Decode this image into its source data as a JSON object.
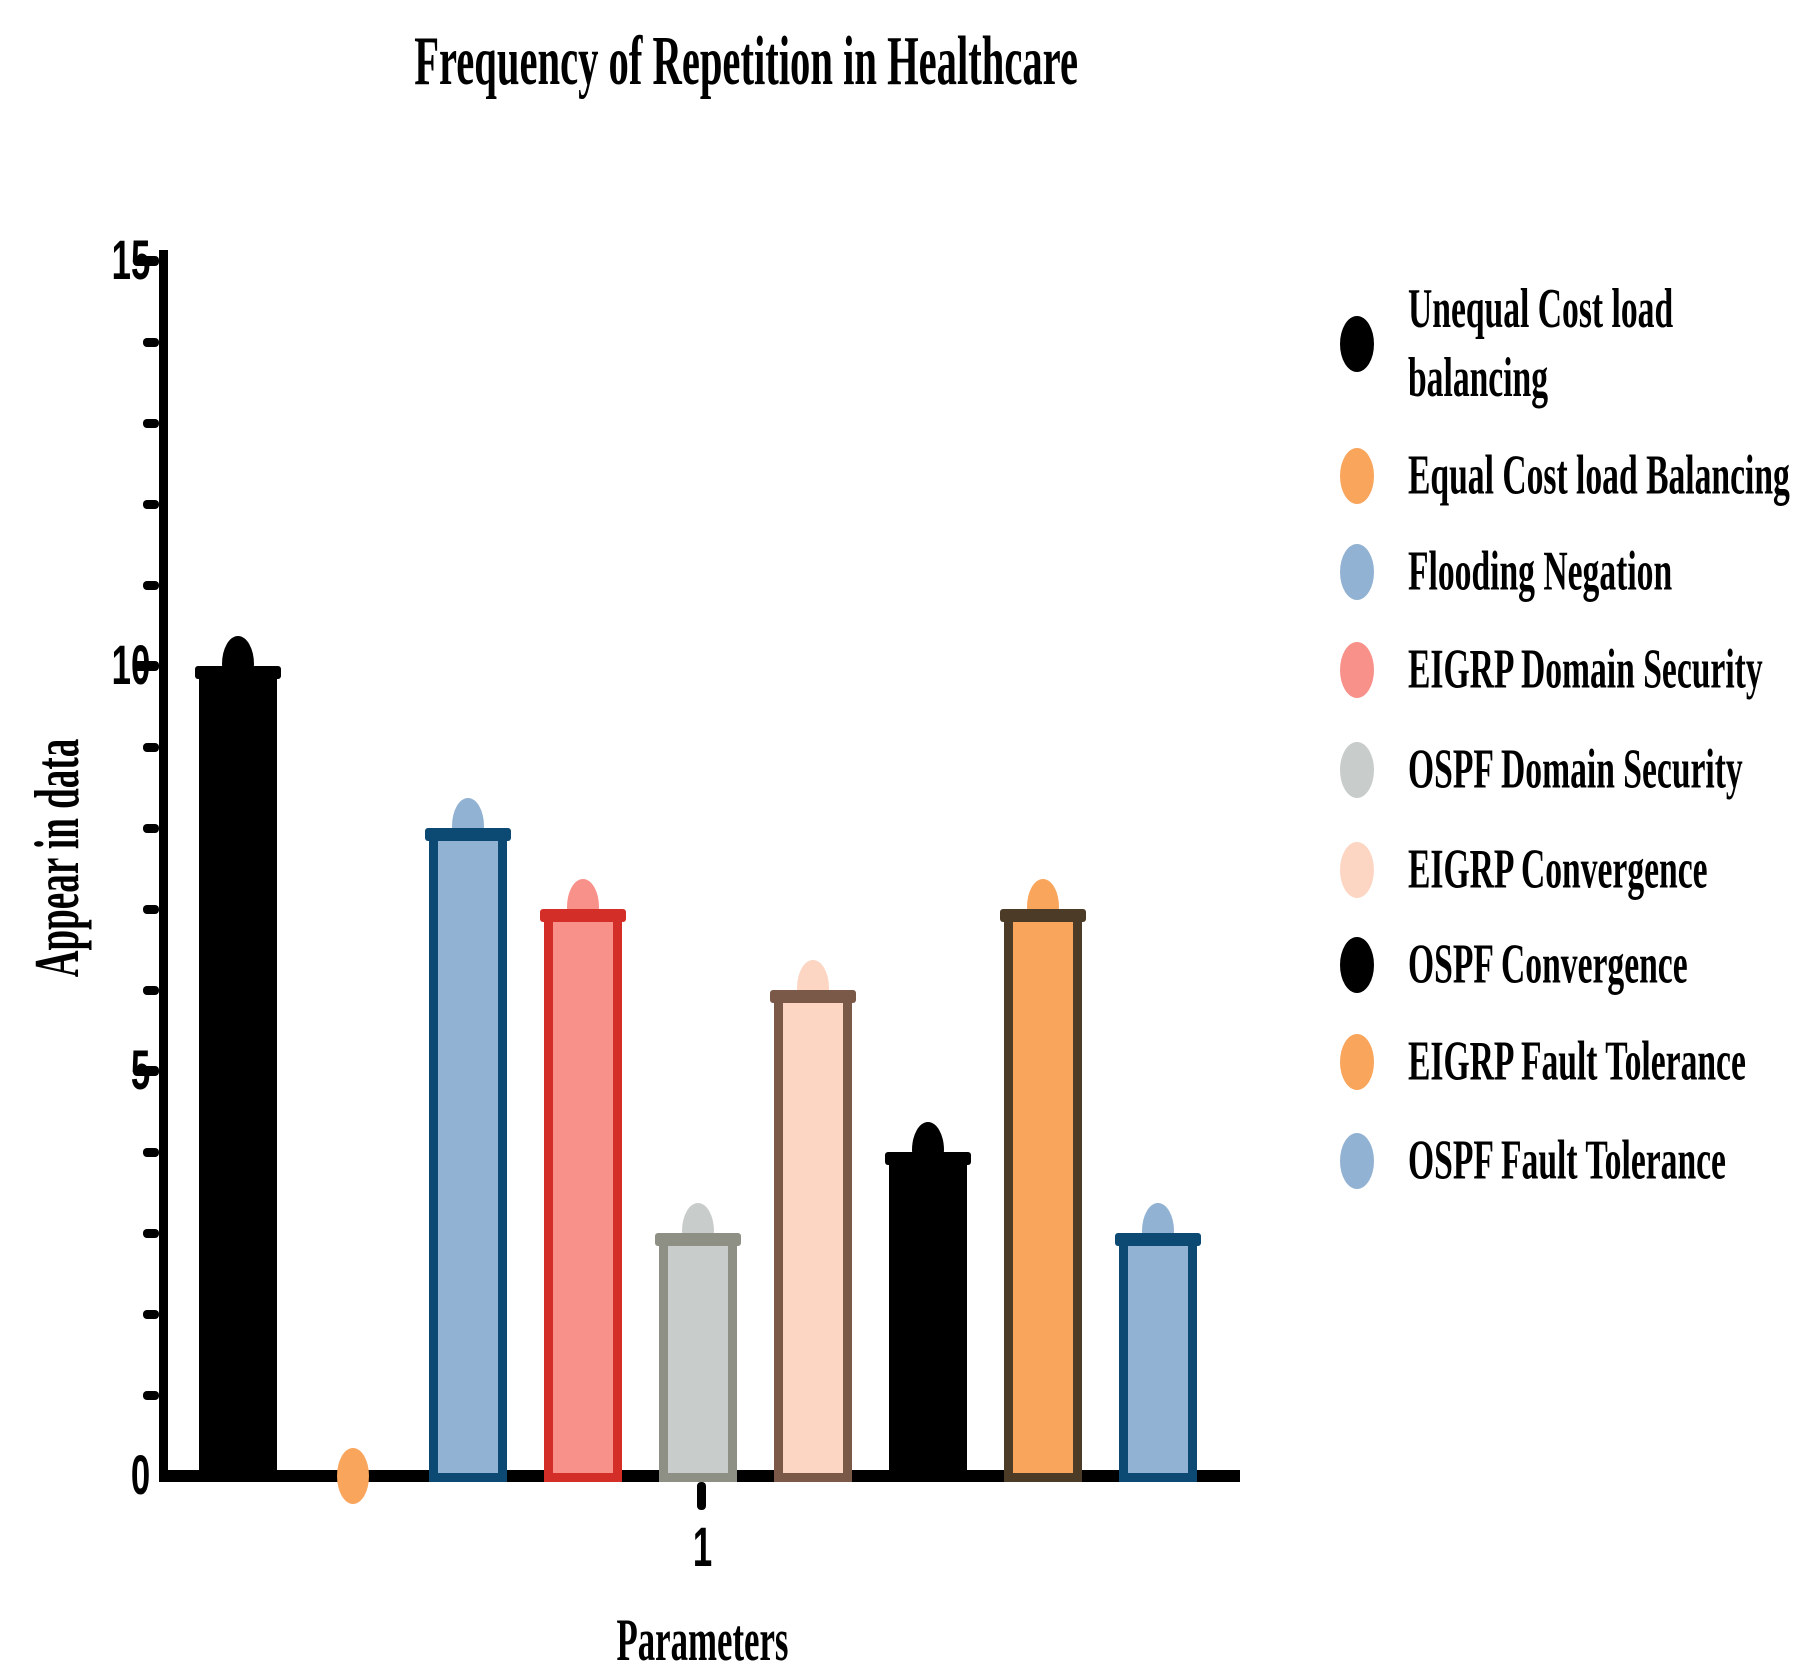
{
  "title": "Frequency of Repetition in Healthcare",
  "chart_data": {
    "type": "bar",
    "title": "Frequency of Repetition in Healthcare",
    "xlabel": "Parameters",
    "ylabel": "Appear in data",
    "x_categories": [
      "1"
    ],
    "x_tick_label": "1",
    "ylim": [
      0,
      15
    ],
    "y_major_ticks": [
      0,
      5,
      10,
      15
    ],
    "y_tick_labels": [
      "0",
      "5",
      "10",
      "15"
    ],
    "y_minor_tick_step": 1,
    "grid": "off",
    "legend_position": "right",
    "series": [
      {
        "name": "Unequal Cost load balancing",
        "legend_label": "Unequal Cost load\nbalancing",
        "value": 10,
        "fill": "#000000",
        "border": "#000000"
      },
      {
        "name": "Equal Cost load Balancing",
        "legend_label": "Equal Cost load Balancing",
        "value": 0,
        "fill": "#F9A55C",
        "border": "#F9A55C"
      },
      {
        "name": "Flooding Negation",
        "legend_label": "Flooding Negation",
        "value": 8,
        "fill": "#92B2D3",
        "border": "#0D4A73"
      },
      {
        "name": "EIGRP Domain Security",
        "legend_label": "EIGRP Domain Security",
        "value": 7,
        "fill": "#F8918A",
        "border": "#D32F28"
      },
      {
        "name": "OSPF Domain Security",
        "legend_label": "OSPF Domain Security",
        "value": 3,
        "fill": "#C8CCCA",
        "border": "#8E9086"
      },
      {
        "name": "EIGRP Convergence",
        "legend_label": "EIGRP Convergence",
        "value": 6,
        "fill": "#FDD6C3",
        "border": "#7B5948"
      },
      {
        "name": "OSPF Convergence",
        "legend_label": "OSPF Convergence",
        "value": 4,
        "fill": "#000000",
        "border": "#000000"
      },
      {
        "name": "EIGRP Fault Tolerance",
        "legend_label": "EIGRP Fault Tolerance",
        "value": 7,
        "fill": "#F9A55C",
        "border": "#4C3B26"
      },
      {
        "name": "OSPF Fault Tolerance",
        "legend_label": "OSPF Fault Tolerance",
        "value": 3,
        "fill": "#92B2D3",
        "border": "#0D4A73"
      }
    ]
  }
}
